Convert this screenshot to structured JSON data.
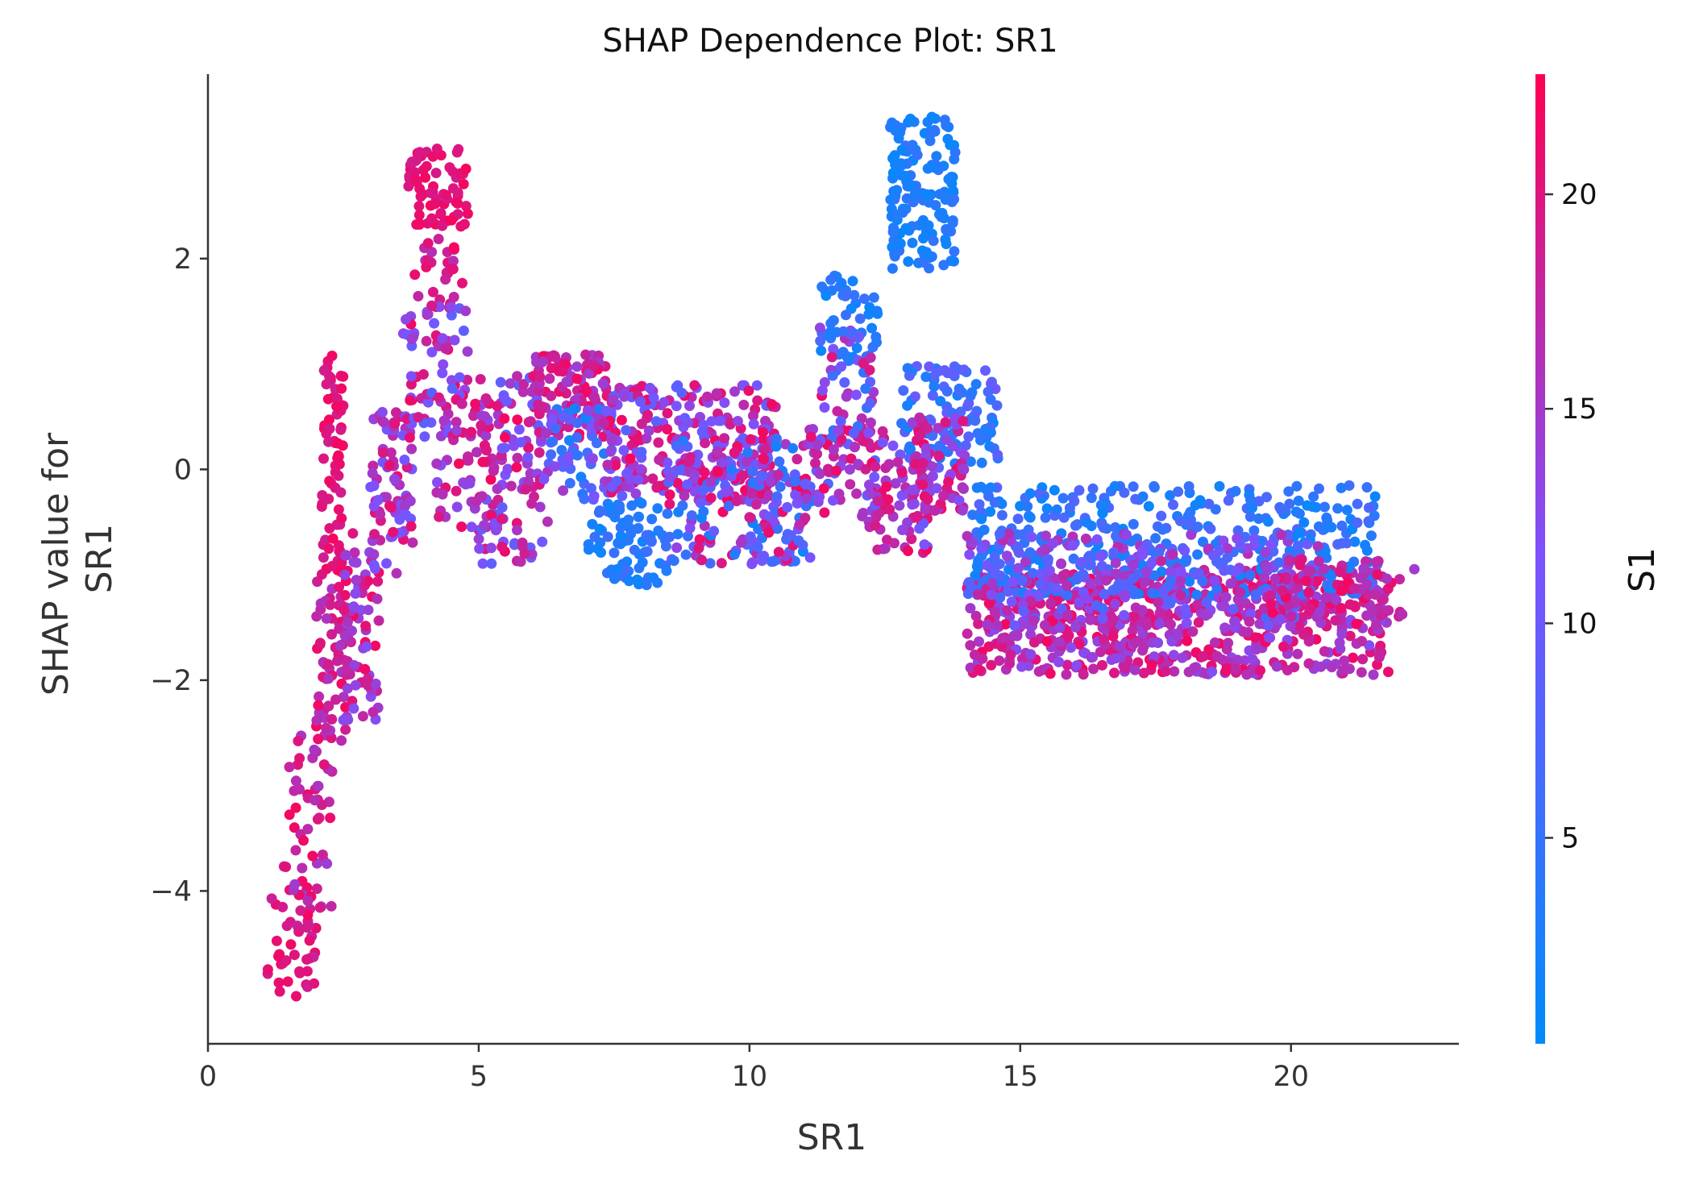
{
  "chart_data": {
    "type": "scatter",
    "title": "SHAP Dependence Plot: SR1",
    "xlabel": "SR1",
    "ylabel_lines": [
      "SHAP value for",
      "SR1"
    ],
    "xlim": [
      0,
      23.1
    ],
    "ylim": [
      -5.45,
      3.75
    ],
    "x_ticks": [
      0,
      5,
      10,
      15,
      20
    ],
    "y_ticks": [
      -4,
      -2,
      0,
      2
    ],
    "y_tick_labels": [
      "−4",
      "−2",
      "0",
      "2"
    ],
    "grid": false,
    "colorbar": {
      "label": "S1",
      "range": [
        0.2,
        22.8
      ],
      "ticks": [
        5,
        10,
        15,
        20
      ],
      "low_color": "#008bfb",
      "mid_color": "#7c52ff",
      "high_color": "#ff0052"
    },
    "marker_color_scale": "S1",
    "point_clusters": [
      {
        "x": [
          1.1,
          2.0
        ],
        "y": [
          -5.1,
          -4.0
        ],
        "color_value": [
          18,
          22
        ],
        "count": 40
      },
      {
        "x": [
          1.4,
          2.3
        ],
        "y": [
          -4.2,
          -2.5
        ],
        "color_value": [
          14,
          22
        ],
        "count": 55
      },
      {
        "x": [
          2.0,
          2.6
        ],
        "y": [
          -2.6,
          -1.0
        ],
        "color_value": [
          15,
          22
        ],
        "count": 70
      },
      {
        "x": [
          2.1,
          2.5
        ],
        "y": [
          -1.0,
          1.1
        ],
        "color_value": [
          18,
          22
        ],
        "count": 70
      },
      {
        "x": [
          2.5,
          3.2
        ],
        "y": [
          -2.4,
          -0.6
        ],
        "color_value": [
          12,
          22
        ],
        "count": 70
      },
      {
        "x": [
          3.0,
          3.8
        ],
        "y": [
          -1.0,
          0.6
        ],
        "color_value": [
          10,
          21
        ],
        "count": 80
      },
      {
        "x": [
          3.7,
          4.8
        ],
        "y": [
          2.3,
          3.05
        ],
        "color_value": [
          19,
          22
        ],
        "count": 70
      },
      {
        "x": [
          3.8,
          4.7
        ],
        "y": [
          1.2,
          2.2
        ],
        "color_value": [
          16,
          22
        ],
        "count": 30
      },
      {
        "x": [
          3.6,
          4.8
        ],
        "y": [
          0.3,
          1.6
        ],
        "color_value": [
          8,
          22
        ],
        "count": 70
      },
      {
        "x": [
          4.2,
          5.5
        ],
        "y": [
          -0.6,
          0.7
        ],
        "color_value": [
          12,
          22
        ],
        "count": 70
      },
      {
        "x": [
          5.0,
          6.3
        ],
        "y": [
          -0.9,
          0.9
        ],
        "color_value": [
          8,
          22
        ],
        "count": 110
      },
      {
        "x": [
          6.0,
          7.4
        ],
        "y": [
          0.3,
          1.1
        ],
        "color_value": [
          14,
          22
        ],
        "count": 110
      },
      {
        "x": [
          6.2,
          7.5
        ],
        "y": [
          -0.3,
          0.6
        ],
        "color_value": [
          2,
          16
        ],
        "count": 70
      },
      {
        "x": [
          7.0,
          8.5
        ],
        "y": [
          -1.1,
          -0.3
        ],
        "color_value": [
          1,
          6
        ],
        "count": 80
      },
      {
        "x": [
          7.3,
          10.5
        ],
        "y": [
          -0.3,
          0.8
        ],
        "color_value": [
          8,
          22
        ],
        "count": 280
      },
      {
        "x": [
          8.5,
          11.0
        ],
        "y": [
          -0.9,
          0.3
        ],
        "color_value": [
          1,
          22
        ],
        "count": 120
      },
      {
        "x": [
          10.0,
          11.3
        ],
        "y": [
          -0.9,
          0.0
        ],
        "color_value": [
          3,
          22
        ],
        "count": 60
      },
      {
        "x": [
          11.3,
          12.4
        ],
        "y": [
          1.0,
          1.85
        ],
        "color_value": [
          1,
          6
        ],
        "count": 50
      },
      {
        "x": [
          11.3,
          12.3
        ],
        "y": [
          0.2,
          1.4
        ],
        "color_value": [
          4,
          22
        ],
        "count": 60
      },
      {
        "x": [
          11.0,
          12.5
        ],
        "y": [
          -0.5,
          0.4
        ],
        "color_value": [
          8,
          22
        ],
        "count": 60
      },
      {
        "x": [
          12.2,
          13.4
        ],
        "y": [
          -0.8,
          0.3
        ],
        "color_value": [
          10,
          22
        ],
        "count": 80
      },
      {
        "x": [
          12.6,
          13.8
        ],
        "y": [
          1.9,
          3.35
        ],
        "color_value": [
          1,
          5
        ],
        "count": 150
      },
      {
        "x": [
          12.8,
          14.6
        ],
        "y": [
          0.0,
          1.0
        ],
        "color_value": [
          1,
          10
        ],
        "count": 110
      },
      {
        "x": [
          13.0,
          14.0
        ],
        "y": [
          -0.4,
          0.5
        ],
        "color_value": [
          12,
          22
        ],
        "count": 70
      },
      {
        "x": [
          14.0,
          21.8
        ],
        "y": [
          -1.95,
          -0.95
        ],
        "color_value": [
          12,
          22
        ],
        "count": 650
      },
      {
        "x": [
          14.1,
          21.6
        ],
        "y": [
          -1.2,
          -0.15
        ],
        "color_value": [
          1,
          8
        ],
        "count": 380
      },
      {
        "x": [
          14.0,
          20.5
        ],
        "y": [
          -1.5,
          -0.6
        ],
        "color_value": [
          6,
          18
        ],
        "count": 250
      },
      {
        "x": [
          19.5,
          22.3
        ],
        "y": [
          -1.4,
          -0.85
        ],
        "color_value": [
          14,
          22
        ],
        "count": 80
      }
    ]
  }
}
